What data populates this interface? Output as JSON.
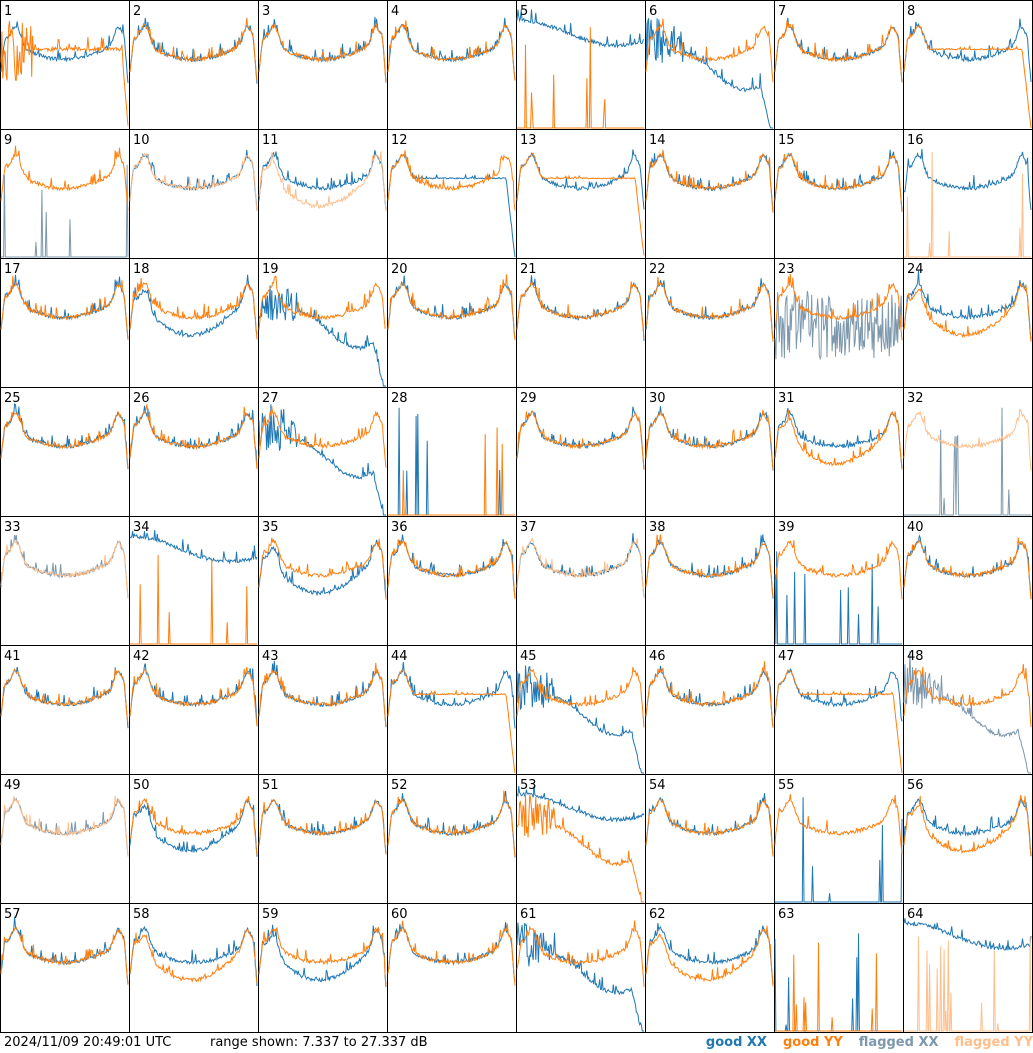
{
  "timestamp": "2024/11/09 20:49:01 UTC",
  "range_text": "range shown: 7.337 to 27.337 dB",
  "legend": {
    "good_xx": "good XX",
    "good_yy": "good YY",
    "flagged_xx": "flagged XX",
    "flagged_yy": "flagged YY"
  },
  "colors": {
    "good_xx": "#1f77b4",
    "good_yy": "#ff7f0e",
    "flagged_xx": "#7d98ad",
    "flagged_yy": "#ffbe8a"
  },
  "chart_data": {
    "type": "line",
    "grid": "8x8 small multiples",
    "ylim_db": [
      7.337,
      27.337
    ],
    "panels": [
      {
        "id": "1",
        "xx": "good",
        "yy": "good",
        "xx_shape": "normal",
        "yy_shape": "lowflat"
      },
      {
        "id": "2",
        "xx": "good",
        "yy": "good",
        "xx_shape": "normal",
        "yy_shape": "normal"
      },
      {
        "id": "3",
        "xx": "good",
        "yy": "good",
        "xx_shape": "normal",
        "yy_shape": "normal"
      },
      {
        "id": "4",
        "xx": "good",
        "yy": "good",
        "xx_shape": "normal",
        "yy_shape": "normal"
      },
      {
        "id": "5",
        "xx": "good",
        "yy": "good",
        "xx_shape": "high",
        "yy_shape": "dead"
      },
      {
        "id": "6",
        "xx": "good",
        "yy": "good",
        "xx_shape": "dip",
        "yy_shape": "normal"
      },
      {
        "id": "7",
        "xx": "good",
        "yy": "good",
        "xx_shape": "normal",
        "yy_shape": "normal"
      },
      {
        "id": "8",
        "xx": "good",
        "yy": "good",
        "xx_shape": "normal",
        "yy_shape": "flat"
      },
      {
        "id": "9",
        "xx": "flagged",
        "yy": "good",
        "xx_shape": "dead",
        "yy_shape": "normal"
      },
      {
        "id": "10",
        "xx": "good",
        "yy": "flagged",
        "xx_shape": "normal",
        "yy_shape": "normal"
      },
      {
        "id": "11",
        "xx": "good",
        "yy": "flagged",
        "xx_shape": "normal",
        "yy_shape": "low"
      },
      {
        "id": "12",
        "xx": "good",
        "yy": "good",
        "xx_shape": "flat",
        "yy_shape": "normal"
      },
      {
        "id": "13",
        "xx": "good",
        "yy": "good",
        "xx_shape": "normal",
        "yy_shape": "flat"
      },
      {
        "id": "14",
        "xx": "good",
        "yy": "good",
        "xx_shape": "normal",
        "yy_shape": "normal"
      },
      {
        "id": "15",
        "xx": "good",
        "yy": "good",
        "xx_shape": "normal",
        "yy_shape": "normal"
      },
      {
        "id": "16",
        "xx": "good",
        "yy": "flagged",
        "xx_shape": "normal",
        "yy_shape": "dead"
      },
      {
        "id": "17",
        "xx": "good",
        "yy": "good",
        "xx_shape": "normal",
        "yy_shape": "normal"
      },
      {
        "id": "18",
        "xx": "good",
        "yy": "good",
        "xx_shape": "low",
        "yy_shape": "normal"
      },
      {
        "id": "19",
        "xx": "good",
        "yy": "good",
        "xx_shape": "dip",
        "yy_shape": "normal"
      },
      {
        "id": "20",
        "xx": "good",
        "yy": "good",
        "xx_shape": "normal",
        "yy_shape": "normal"
      },
      {
        "id": "21",
        "xx": "good",
        "yy": "good",
        "xx_shape": "normal",
        "yy_shape": "normal"
      },
      {
        "id": "22",
        "xx": "good",
        "yy": "good",
        "xx_shape": "normal",
        "yy_shape": "normal"
      },
      {
        "id": "23",
        "xx": "flagged",
        "yy": "good",
        "xx_shape": "noisy",
        "yy_shape": "normal"
      },
      {
        "id": "24",
        "xx": "good",
        "yy": "good",
        "xx_shape": "normal",
        "yy_shape": "low"
      },
      {
        "id": "25",
        "xx": "good",
        "yy": "good",
        "xx_shape": "normal",
        "yy_shape": "normal"
      },
      {
        "id": "26",
        "xx": "good",
        "yy": "good",
        "xx_shape": "normal",
        "yy_shape": "normal"
      },
      {
        "id": "27",
        "xx": "good",
        "yy": "good",
        "xx_shape": "dip",
        "yy_shape": "normal"
      },
      {
        "id": "28",
        "xx": "good",
        "yy": "good",
        "xx_shape": "dead",
        "yy_shape": "dead"
      },
      {
        "id": "29",
        "xx": "good",
        "yy": "good",
        "xx_shape": "normal",
        "yy_shape": "normal"
      },
      {
        "id": "30",
        "xx": "good",
        "yy": "good",
        "xx_shape": "normal",
        "yy_shape": "normal"
      },
      {
        "id": "31",
        "xx": "good",
        "yy": "good",
        "xx_shape": "normal",
        "yy_shape": "low"
      },
      {
        "id": "32",
        "xx": "flagged",
        "yy": "flagged",
        "xx_shape": "dead",
        "yy_shape": "normal"
      },
      {
        "id": "33",
        "xx": "flagged",
        "yy": "flagged",
        "xx_shape": "normal",
        "yy_shape": "normal"
      },
      {
        "id": "34",
        "xx": "good",
        "yy": "good",
        "xx_shape": "high",
        "yy_shape": "dead"
      },
      {
        "id": "35",
        "xx": "good",
        "yy": "good",
        "xx_shape": "low",
        "yy_shape": "normal"
      },
      {
        "id": "36",
        "xx": "good",
        "yy": "good",
        "xx_shape": "normal",
        "yy_shape": "normal"
      },
      {
        "id": "37",
        "xx": "good",
        "yy": "flagged",
        "xx_shape": "normal",
        "yy_shape": "normal"
      },
      {
        "id": "38",
        "xx": "good",
        "yy": "good",
        "xx_shape": "normal",
        "yy_shape": "normal"
      },
      {
        "id": "39",
        "xx": "good",
        "yy": "good",
        "xx_shape": "dead",
        "yy_shape": "normal"
      },
      {
        "id": "40",
        "xx": "good",
        "yy": "good",
        "xx_shape": "normal",
        "yy_shape": "normal"
      },
      {
        "id": "41",
        "xx": "good",
        "yy": "good",
        "xx_shape": "normal",
        "yy_shape": "normal"
      },
      {
        "id": "42",
        "xx": "good",
        "yy": "good",
        "xx_shape": "normal",
        "yy_shape": "normal"
      },
      {
        "id": "43",
        "xx": "good",
        "yy": "good",
        "xx_shape": "normal",
        "yy_shape": "normal"
      },
      {
        "id": "44",
        "xx": "good",
        "yy": "good",
        "xx_shape": "normal",
        "yy_shape": "flat"
      },
      {
        "id": "45",
        "xx": "good",
        "yy": "good",
        "xx_shape": "dip",
        "yy_shape": "normal"
      },
      {
        "id": "46",
        "xx": "good",
        "yy": "good",
        "xx_shape": "normal",
        "yy_shape": "normal"
      },
      {
        "id": "47",
        "xx": "good",
        "yy": "good",
        "xx_shape": "normal",
        "yy_shape": "flat"
      },
      {
        "id": "48",
        "xx": "flagged",
        "yy": "good",
        "xx_shape": "dip",
        "yy_shape": "normal"
      },
      {
        "id": "49",
        "xx": "flagged",
        "yy": "flagged",
        "xx_shape": "normal",
        "yy_shape": "normal"
      },
      {
        "id": "50",
        "xx": "good",
        "yy": "good",
        "xx_shape": "low",
        "yy_shape": "normal"
      },
      {
        "id": "51",
        "xx": "good",
        "yy": "good",
        "xx_shape": "normal",
        "yy_shape": "normal"
      },
      {
        "id": "52",
        "xx": "good",
        "yy": "good",
        "xx_shape": "normal",
        "yy_shape": "normal"
      },
      {
        "id": "53",
        "xx": "good",
        "yy": "good",
        "xx_shape": "high",
        "yy_shape": "dip"
      },
      {
        "id": "54",
        "xx": "good",
        "yy": "good",
        "xx_shape": "normal",
        "yy_shape": "normal"
      },
      {
        "id": "55",
        "xx": "good",
        "yy": "good",
        "xx_shape": "dead",
        "yy_shape": "normal"
      },
      {
        "id": "56",
        "xx": "good",
        "yy": "good",
        "xx_shape": "normal",
        "yy_shape": "low"
      },
      {
        "id": "57",
        "xx": "good",
        "yy": "good",
        "xx_shape": "normal",
        "yy_shape": "normal"
      },
      {
        "id": "58",
        "xx": "good",
        "yy": "good",
        "xx_shape": "normal",
        "yy_shape": "low"
      },
      {
        "id": "59",
        "xx": "good",
        "yy": "good",
        "xx_shape": "low",
        "yy_shape": "normal"
      },
      {
        "id": "60",
        "xx": "good",
        "yy": "good",
        "xx_shape": "normal",
        "yy_shape": "normal"
      },
      {
        "id": "61",
        "xx": "good",
        "yy": "good",
        "xx_shape": "dip",
        "yy_shape": "normal"
      },
      {
        "id": "62",
        "xx": "good",
        "yy": "good",
        "xx_shape": "normal",
        "yy_shape": "low"
      },
      {
        "id": "63",
        "xx": "good",
        "yy": "good",
        "xx_shape": "dead",
        "yy_shape": "dead"
      },
      {
        "id": "64",
        "xx": "good",
        "yy": "flagged",
        "xx_shape": "high",
        "yy_shape": "dead"
      }
    ]
  }
}
